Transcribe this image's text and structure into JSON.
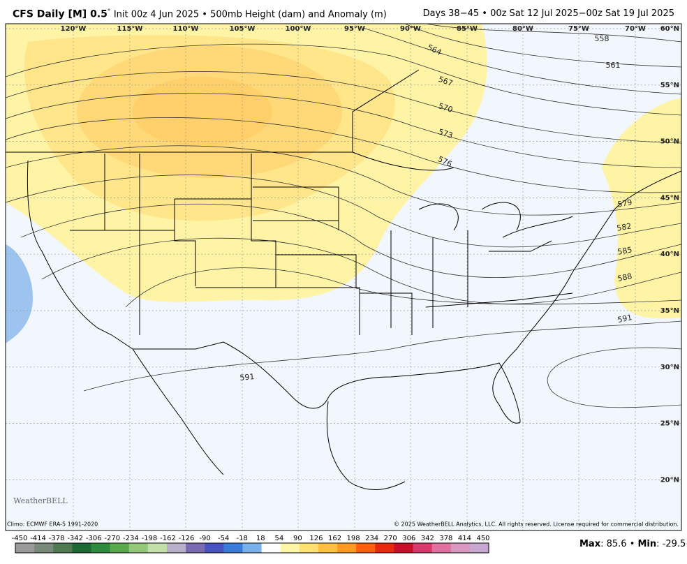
{
  "header": {
    "title": "CFS Daily [M] 0.5",
    "degree": "°",
    "subtitle": "Init 00z 4 Jun 2025 • 500mb Height (dam) and Anomaly (m)",
    "valid": "Days 38−45 • 00z Sat 12 Jul 2025−00z Sat 19 Jul 2025"
  },
  "map": {
    "lon_labels": [
      "120°W",
      "115°W",
      "110°W",
      "105°W",
      "100°W",
      "95°W",
      "90°W",
      "85°W",
      "80°W",
      "75°W",
      "70°W"
    ],
    "lat_labels": [
      "60°N",
      "55°N",
      "50°N",
      "45°N",
      "40°N",
      "35°N",
      "30°N",
      "25°N",
      "20°N"
    ],
    "contour_labels": [
      558,
      561,
      564,
      567,
      570,
      573,
      576,
      579,
      582,
      585,
      588,
      591,
      591
    ],
    "logo": "WeatherBELL"
  },
  "footer": {
    "climo": "Climo: ECMWF ERA-5 1991-2020",
    "copyright": "© 2025 WeatherBELL Analytics, LLC. All rights reserved. License required for commercial distribution."
  },
  "colorbar": {
    "ticks": [
      -450,
      -414,
      -378,
      -342,
      -306,
      -270,
      -234,
      -198,
      -162,
      -126,
      -90,
      -54,
      -18,
      18,
      54,
      90,
      126,
      162,
      198,
      234,
      270,
      306,
      342,
      378,
      414,
      450
    ],
    "colors": [
      "#9a9a9a",
      "#7a8a7a",
      "#4f7a52",
      "#1f6a34",
      "#2f8a3e",
      "#5aa84e",
      "#93c77a",
      "#c2dfa8",
      "#b7b0c8",
      "#7a6ab0",
      "#4a54c0",
      "#3a7ad8",
      "#7ab0ea",
      "#ffffff",
      "#fff5a8",
      "#ffe070",
      "#ffc040",
      "#ff9a20",
      "#ff6010",
      "#e62a10",
      "#c8102a",
      "#d8386a",
      "#e070a0",
      "#d898c0",
      "#c8a8d0"
    ]
  },
  "stats": [
    "Max",
    ": 85.6 • ",
    "Min",
    ": -29.5"
  ]
}
